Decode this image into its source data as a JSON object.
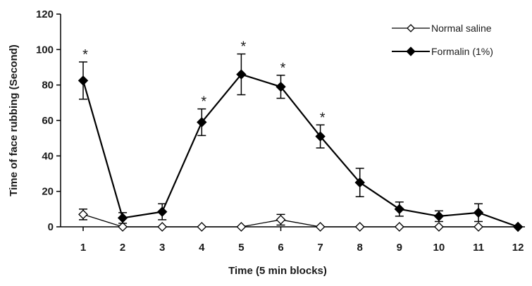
{
  "chart_data": {
    "type": "line",
    "xlabel": "Time (5 min blocks)",
    "ylabel": "Time of face rubbing (Second)",
    "categories": [
      "1",
      "2",
      "3",
      "4",
      "5",
      "6",
      "7",
      "8",
      "9",
      "10",
      "11",
      "12"
    ],
    "ylim": [
      0,
      120
    ],
    "yticks": [
      "0",
      "20",
      "40",
      "60",
      "80",
      "100",
      "120"
    ],
    "series": [
      {
        "name": "Normal saline",
        "marker": "open-diamond",
        "color": "#000000",
        "values": [
          7,
          0,
          0,
          0,
          0,
          4,
          0,
          0,
          0,
          0,
          0,
          0
        ],
        "err": [
          3,
          0,
          0,
          0,
          0,
          3,
          0,
          0,
          0,
          0,
          0,
          0
        ]
      },
      {
        "name": "Formalin (1%)",
        "marker": "filled-diamond",
        "color": "#000000",
        "values": [
          82.5,
          5,
          8.5,
          59,
          86,
          79,
          51,
          25,
          10,
          6,
          8,
          0
        ],
        "err": [
          10.5,
          3,
          4.5,
          7.5,
          11.5,
          6.5,
          6.5,
          8,
          4,
          3,
          5,
          0
        ]
      }
    ],
    "annotations": [
      {
        "text": "*",
        "category": "1"
      },
      {
        "text": "*",
        "category": "4"
      },
      {
        "text": "*",
        "category": "5"
      },
      {
        "text": "*",
        "category": "6"
      },
      {
        "text": "*",
        "category": "7"
      }
    ],
    "legend": "top-right",
    "grid": false
  }
}
